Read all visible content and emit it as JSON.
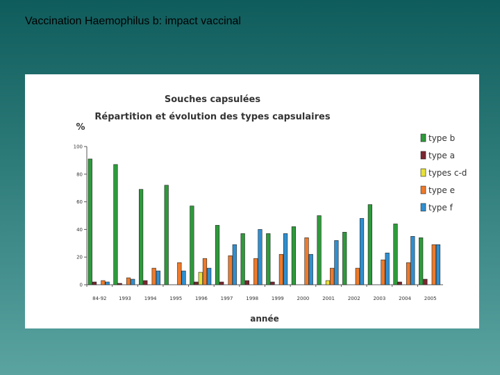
{
  "slide": {
    "title": "Vaccination Haemophilus b: impact vaccinal"
  },
  "colors": {
    "background": "#1f6b6a",
    "panel": "#ffffff",
    "type_b": "#2e9a3b",
    "type_a": "#7a2630",
    "types_cd": "#e8e23a",
    "type_e": "#ee7a2a",
    "type_f": "#2f8fd0"
  },
  "chart_data": {
    "type": "bar",
    "title": "Souches capsulées",
    "subtitle": "Répartition et évolution des types capsulaires",
    "ylabel": "%",
    "xlabel": "année",
    "ylim": [
      0,
      100
    ],
    "yticks": [
      0,
      20,
      40,
      60,
      80,
      100
    ],
    "legend_position": "right",
    "categories": [
      "84-92",
      "1993",
      "1994",
      "1995",
      "1996",
      "1997",
      "1998",
      "1999",
      "2000",
      "2001",
      "2002",
      "2003",
      "2004",
      "2005"
    ],
    "series": [
      {
        "name": "type b",
        "color": "#2e9a3b",
        "values": [
          91,
          87,
          69,
          72,
          57,
          43,
          37,
          37,
          42,
          50,
          38,
          58,
          44,
          34
        ]
      },
      {
        "name": "type a",
        "color": "#7a2630",
        "values": [
          2,
          1,
          3,
          0,
          2,
          2,
          3,
          2,
          0,
          0,
          0,
          0,
          2,
          4
        ]
      },
      {
        "name": "types c-d",
        "color": "#e8e23a",
        "values": [
          0,
          0,
          0,
          0,
          9,
          0,
          0,
          0,
          0,
          3,
          0,
          0,
          0,
          0
        ]
      },
      {
        "name": "type e",
        "color": "#ee7a2a",
        "values": [
          3,
          5,
          12,
          16,
          19,
          21,
          19,
          22,
          34,
          12,
          12,
          18,
          16,
          29
        ]
      },
      {
        "name": "type f",
        "color": "#2f8fd0",
        "values": [
          2,
          4,
          10,
          10,
          12,
          29,
          40,
          37,
          22,
          32,
          48,
          23,
          35,
          29
        ]
      }
    ]
  }
}
